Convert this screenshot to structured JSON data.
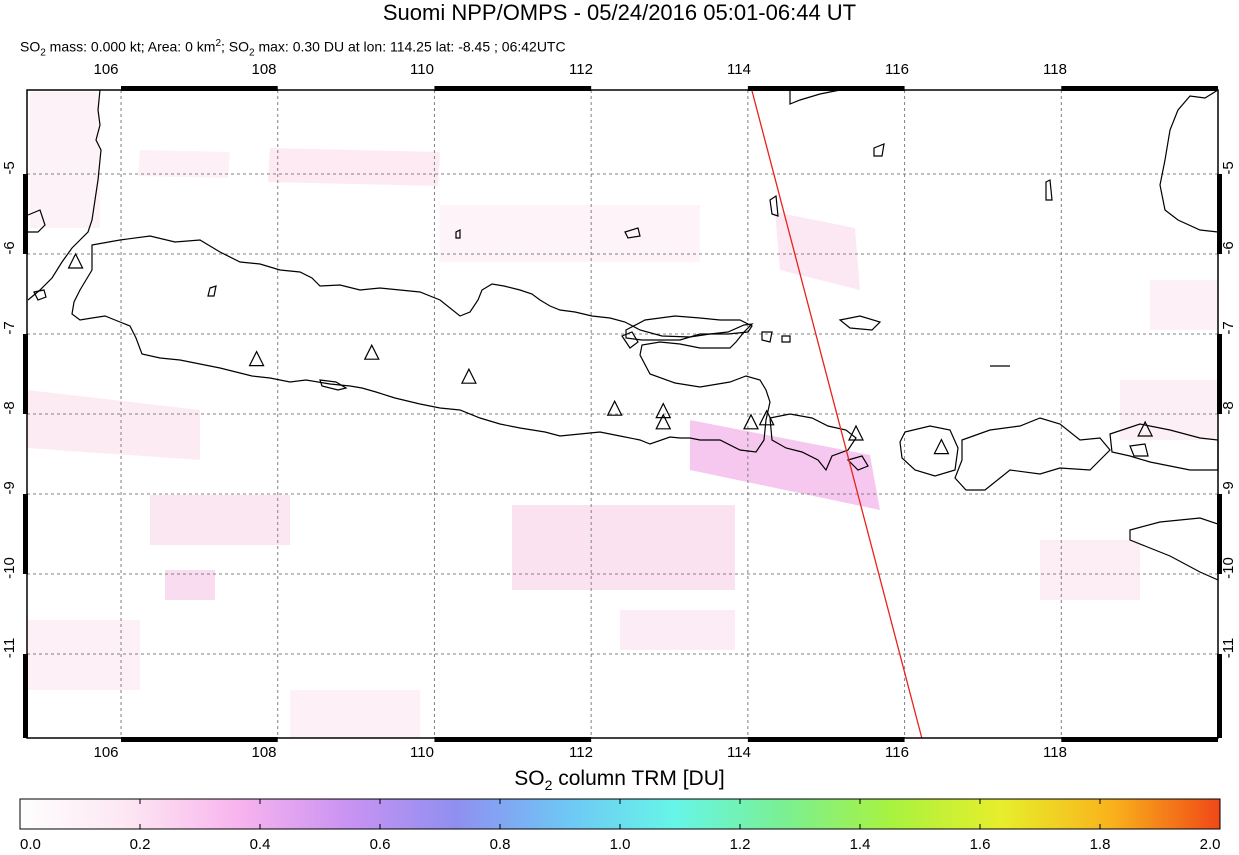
{
  "header": {
    "title": "Suomi NPP/OMPS - 05/24/2016 05:01-06:44 UT",
    "sub_a": "SO",
    "sub_a_sub": "2",
    "sub_b": " mass: 0.000 kt; Area: 0 km",
    "sub_b_sup": "2",
    "sub_c": "; SO",
    "sub_c_sub": "2",
    "sub_d": " max: 0.30 DU at lon: 114.25 lat: -8.45 ; 06:42UTC"
  },
  "map": {
    "lon_ticks": [
      "106",
      "108",
      "110",
      "112",
      "114",
      "116",
      "118"
    ],
    "lat_ticks": [
      "-5",
      "-6",
      "-7",
      "-8",
      "-9",
      "-10",
      "-11"
    ],
    "lon_range": [
      104.8,
      120.0
    ],
    "lat_range": [
      -12.05,
      -3.95
    ],
    "volcanoes": [
      {
        "lon": 105.42,
        "lat": -6.1
      },
      {
        "lon": 107.73,
        "lat": -7.32
      },
      {
        "lon": 109.2,
        "lat": -7.24
      },
      {
        "lon": 110.44,
        "lat": -7.54
      },
      {
        "lon": 112.3,
        "lat": -7.94
      },
      {
        "lon": 112.92,
        "lat": -7.97
      },
      {
        "lon": 112.92,
        "lat": -8.11
      },
      {
        "lon": 114.04,
        "lat": -8.11
      },
      {
        "lon": 114.24,
        "lat": -8.06
      },
      {
        "lon": 115.38,
        "lat": -8.25
      },
      {
        "lon": 116.47,
        "lat": -8.42
      },
      {
        "lon": 119.07,
        "lat": -8.2
      }
    ],
    "orbit_track": {
      "start": {
        "lon": 114.05,
        "lat": -3.95
      },
      "end": {
        "lon": 116.22,
        "lat": -12.05
      },
      "color": "#e8221c"
    }
  },
  "colorbar": {
    "title_a": "SO",
    "title_sub": "2",
    "title_b": " column TRM [DU]",
    "labels": [
      "0.0",
      "0.2",
      "0.4",
      "0.6",
      "0.8",
      "1.0",
      "1.2",
      "1.4",
      "1.6",
      "1.8",
      "2.0"
    ],
    "colors": [
      "#fefefe",
      "#fde6f2",
      "#f8b4ee",
      "#c993f2",
      "#8f8ff0",
      "#6fc6f5",
      "#66f5e8",
      "#7af093",
      "#a9f23f",
      "#e7ee2b",
      "#f9b31c",
      "#f04817"
    ]
  }
}
